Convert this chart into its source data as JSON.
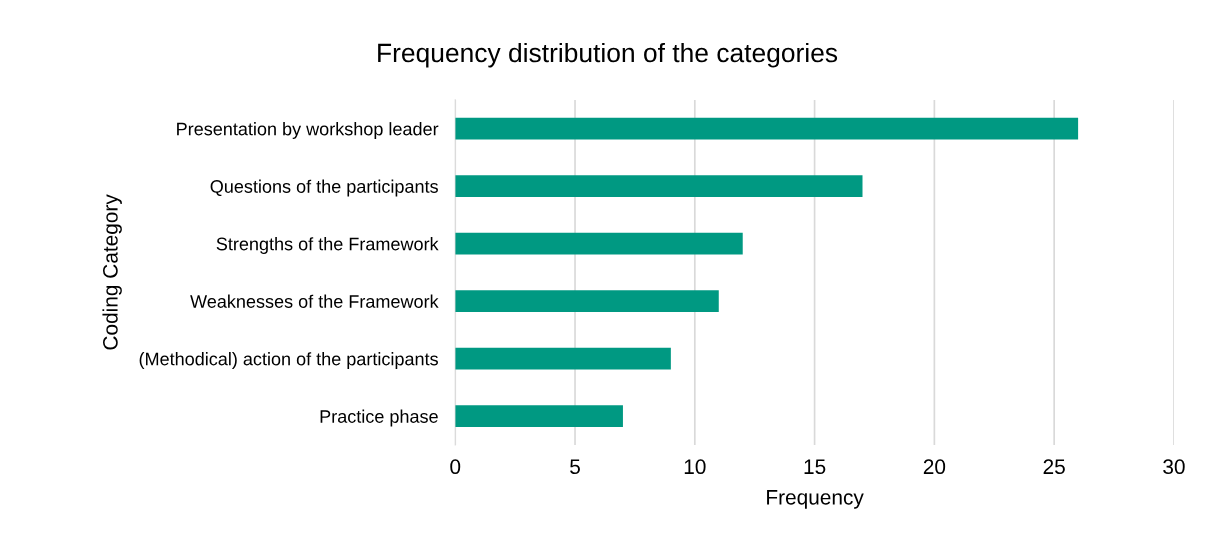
{
  "chart_data": {
    "type": "bar",
    "orientation": "horizontal",
    "title": "Frequency distribution of the categories",
    "xlabel": "Frequency",
    "ylabel": "Coding Category",
    "categories": [
      "Presentation by workshop leader",
      "Questions of the participants",
      "Strengths of the Framework",
      "Weaknesses of the Framework",
      "(Methodical) action of the participants",
      "Practice phase"
    ],
    "values": [
      26,
      17,
      12,
      11,
      9,
      7
    ],
    "color": "#009982",
    "xlim": [
      0,
      30
    ],
    "xticks": [
      0,
      5,
      10,
      15,
      20,
      25,
      30
    ],
    "grid": "x",
    "legend": false
  }
}
